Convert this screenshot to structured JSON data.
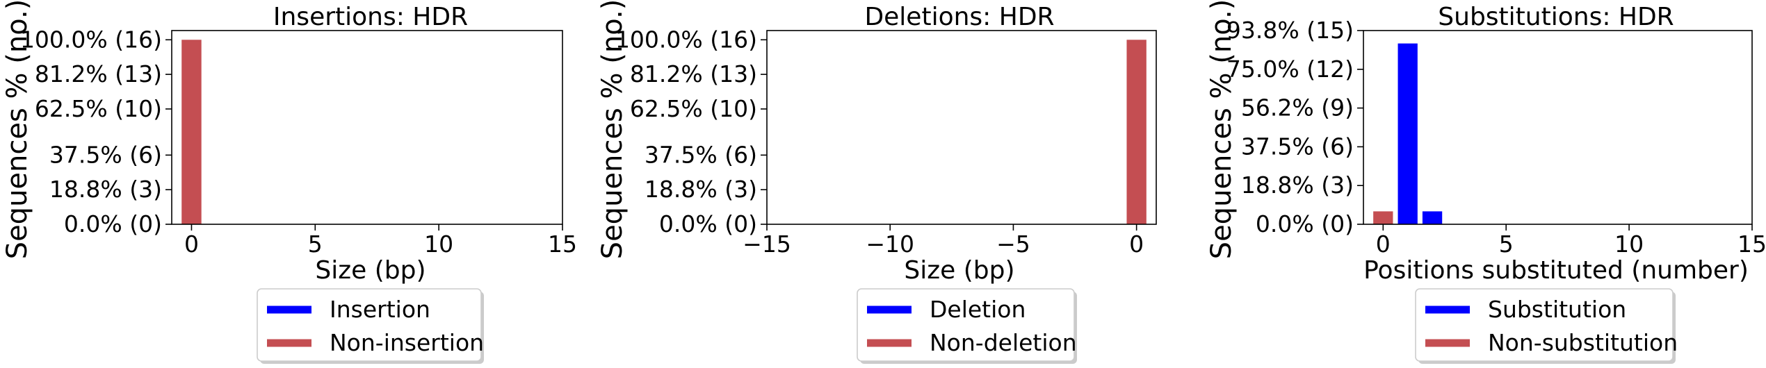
{
  "chart_data": [
    {
      "type": "bar",
      "title": "Insertions: HDR",
      "xlabel": "Size (bp)",
      "ylabel": "Sequences % (no.)",
      "xlim": [
        -0.8,
        15
      ],
      "ylim": [
        0,
        16.8
      ],
      "xticks": [
        0,
        5,
        10,
        15
      ],
      "xtick_labels": [
        "0",
        "5",
        "10",
        "15"
      ],
      "yticks": [
        0,
        3,
        6,
        10,
        13,
        16
      ],
      "ytick_labels": [
        "0.0% (0)",
        "18.8% (3)",
        "37.5% (6)",
        "62.5% (10)",
        "81.2% (13)",
        "100.0% (16)"
      ],
      "grid": false,
      "legend_placement": "below",
      "series": [
        {
          "name": "Insertion",
          "color": "#0000ff",
          "x": [],
          "values": []
        },
        {
          "name": "Non-insertion",
          "color": "#c44e52",
          "x": [
            0
          ],
          "values": [
            16
          ]
        }
      ]
    },
    {
      "type": "bar",
      "title": "Deletions: HDR",
      "xlabel": "Size (bp)",
      "ylabel": "Sequences % (no.)",
      "xlim": [
        -15,
        0.8
      ],
      "ylim": [
        0,
        16.8
      ],
      "xticks": [
        -15,
        -10,
        -5,
        0
      ],
      "xtick_labels": [
        "−15",
        "−10",
        "−5",
        "0"
      ],
      "yticks": [
        0,
        3,
        6,
        10,
        13,
        16
      ],
      "ytick_labels": [
        "0.0% (0)",
        "18.8% (3)",
        "37.5% (6)",
        "62.5% (10)",
        "81.2% (13)",
        "100.0% (16)"
      ],
      "grid": false,
      "legend_placement": "below",
      "series": [
        {
          "name": "Deletion",
          "color": "#0000ff",
          "x": [],
          "values": []
        },
        {
          "name": "Non-deletion",
          "color": "#c44e52",
          "x": [
            0
          ],
          "values": [
            16
          ]
        }
      ]
    },
    {
      "type": "bar",
      "title": "Substitutions: HDR",
      "xlabel": "Positions substituted (number)",
      "ylabel": "Sequences % (no.)",
      "xlim": [
        -0.8,
        15
      ],
      "ylim": [
        0,
        15
      ],
      "xticks": [
        0,
        5,
        10,
        15
      ],
      "xtick_labels": [
        "0",
        "5",
        "10",
        "15"
      ],
      "yticks": [
        0,
        3,
        6,
        9,
        12,
        15
      ],
      "ytick_labels": [
        "0.0% (0)",
        "18.8% (3)",
        "37.5% (6)",
        "56.2% (9)",
        "75.0% (12)",
        "93.8% (15)"
      ],
      "grid": false,
      "legend_placement": "below",
      "series": [
        {
          "name": "Substitution",
          "color": "#0000ff",
          "x": [
            1,
            2
          ],
          "values": [
            14,
            1
          ]
        },
        {
          "name": "Non-substitution",
          "color": "#c44e52",
          "x": [
            0
          ],
          "values": [
            1
          ]
        }
      ]
    }
  ]
}
